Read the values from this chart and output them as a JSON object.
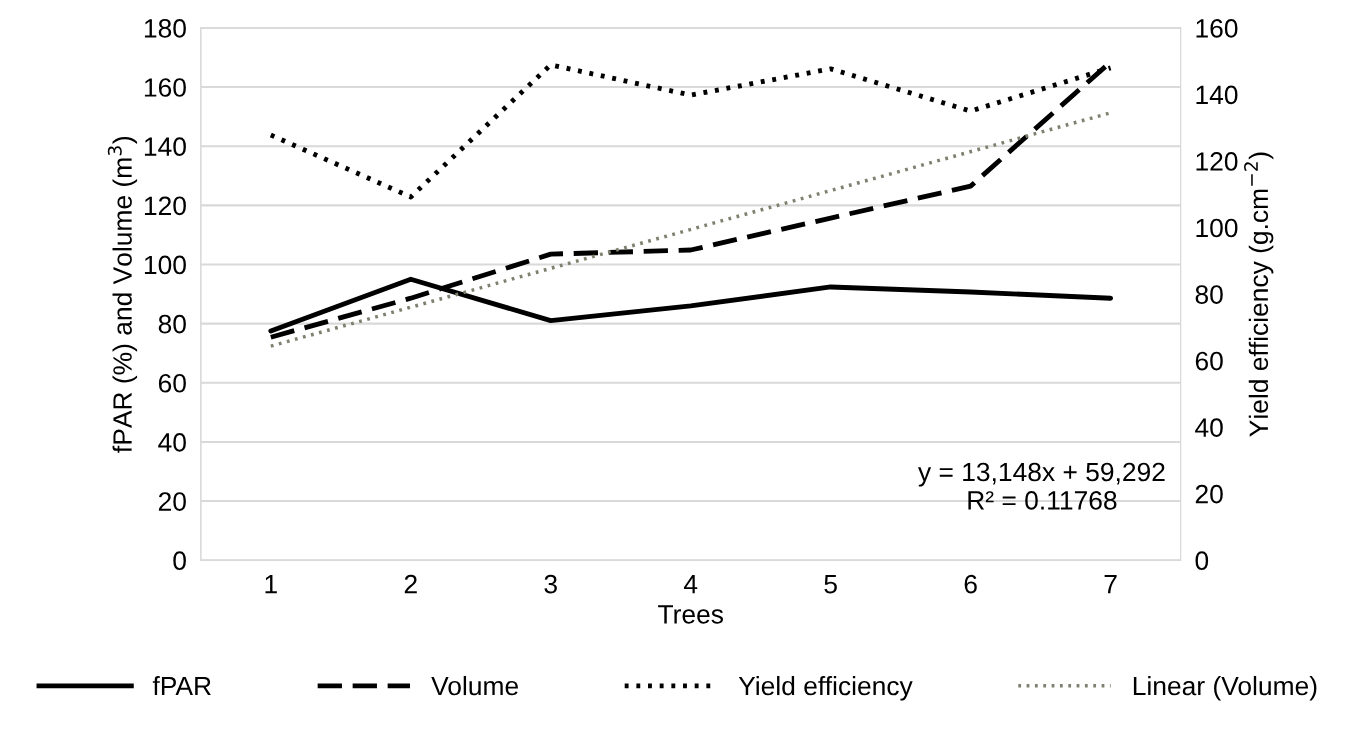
{
  "chart_data": {
    "type": "line",
    "xlabel": "Trees",
    "ylabel": "fPAR (%) and Volume (m$^{3}$)",
    "y2label": "Yield efficiency (g.cm$^{−2}$)",
    "x": [
      1,
      2,
      3,
      4,
      5,
      6,
      7
    ],
    "xlim": [
      0.5,
      7.5
    ],
    "xticks": [
      1,
      2,
      3,
      4,
      5,
      6,
      7
    ],
    "ylim": [
      0,
      180
    ],
    "yticks": [
      0,
      20,
      40,
      60,
      80,
      100,
      120,
      140,
      160,
      180
    ],
    "y2lim": [
      0,
      160
    ],
    "y2ticks": [
      0,
      20,
      40,
      60,
      80,
      100,
      120,
      140,
      160
    ],
    "grid": "y",
    "legend": "bottom",
    "marker": "none",
    "series": [
      {
        "name": "fPAR",
        "color": "#000000",
        "line_style": "solid",
        "values": [
          77.5,
          95,
          81,
          86,
          92.4,
          90.7,
          88.6
        ]
      },
      {
        "name": "Volume",
        "color": "#000000",
        "line_style": "dashed",
        "values": [
          75.4,
          88.6,
          103.5,
          104.9,
          115.7,
          126.5,
          168.5
        ]
      },
      {
        "name": "Yield efficiency",
        "color": "#000000",
        "line_style": "dotted",
        "axis": "y2",
        "values": [
          127.8,
          109.2,
          148.9,
          139.8,
          147.7,
          135,
          148
        ]
      },
      {
        "name": "Linear (Volume)",
        "color": "#808070",
        "line_style": "dotted",
        "x": [
          1,
          7
        ],
        "values": [
          72.4,
          151.3
        ]
      }
    ],
    "annotations": [
      "y = 13,148x + 59,292\nR² = 0.11768"
    ]
  }
}
